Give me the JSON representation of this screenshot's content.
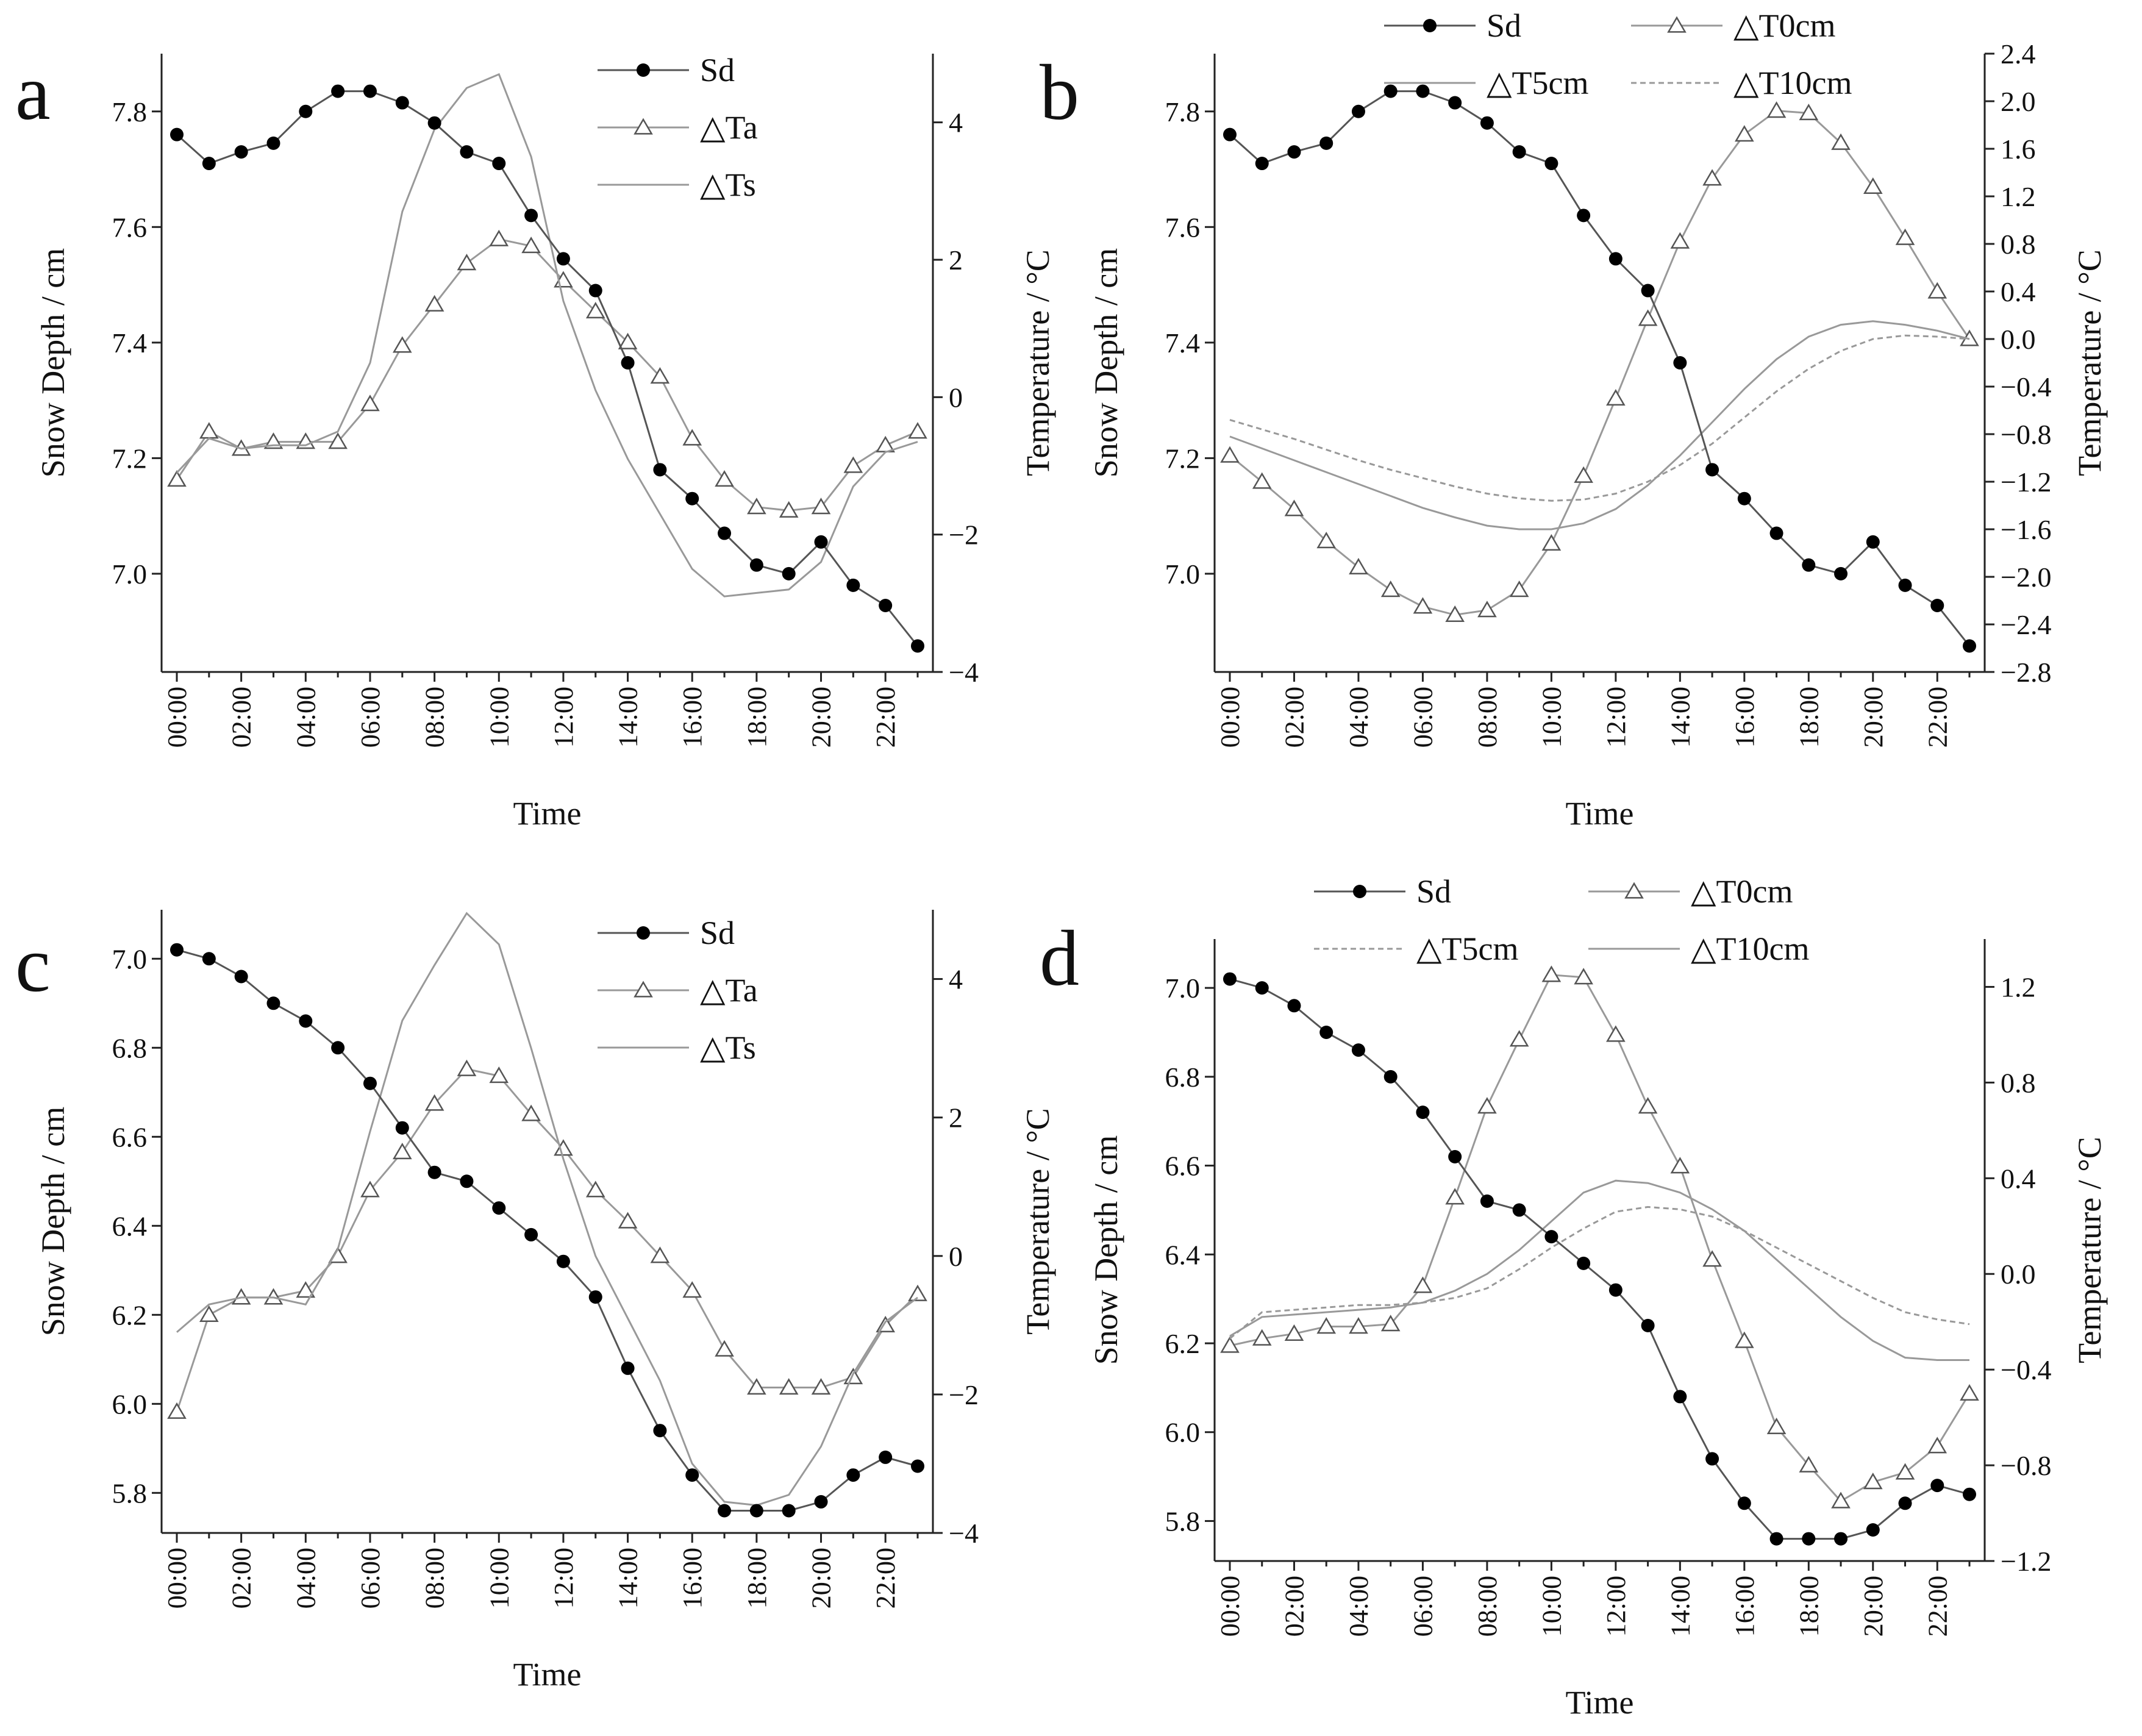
{
  "colors": {
    "axis": "#222222",
    "sd": "#000000",
    "temp": "#999999",
    "background": "#ffffff"
  },
  "chart_data": [
    {
      "panel": "a",
      "type": "line",
      "xlabel": "Time",
      "ylabel": "Snow Depth / cm",
      "y2label": "Temperature / °C",
      "ylim": [
        6.83,
        7.9
      ],
      "y2lim": [
        -4,
        5
      ],
      "yticks": [
        7.0,
        7.2,
        7.4,
        7.6,
        7.8
      ],
      "y2ticks": [
        -4,
        -2,
        0,
        2,
        4
      ],
      "x": [
        "00:00",
        "01:00",
        "02:00",
        "03:00",
        "04:00",
        "05:00",
        "06:00",
        "07:00",
        "08:00",
        "09:00",
        "10:00",
        "11:00",
        "12:00",
        "13:00",
        "14:00",
        "15:00",
        "16:00",
        "17:00",
        "18:00",
        "19:00",
        "20:00",
        "21:00",
        "22:00",
        "23:00"
      ],
      "xtick_labels": [
        "00:00",
        "02:00",
        "04:00",
        "06:00",
        "08:00",
        "10:00",
        "12:00",
        "14:00",
        "16:00",
        "18:00",
        "20:00",
        "22:00"
      ],
      "legend": "top-right",
      "legend_columns": 1,
      "series": [
        {
          "name": "Sd",
          "axis": "left",
          "marker": "filled-circle",
          "line": "solid",
          "values": [
            7.76,
            7.71,
            7.73,
            7.745,
            7.8,
            7.835,
            7.835,
            7.815,
            7.78,
            7.73,
            7.71,
            7.62,
            7.545,
            7.49,
            7.365,
            7.18,
            7.13,
            7.07,
            7.015,
            7.0,
            7.055,
            6.98,
            6.945,
            6.875
          ]
        },
        {
          "name": "△Ta",
          "axis": "right",
          "marker": "open-triangle",
          "line": "solid",
          "values": [
            -1.2,
            -0.5,
            -0.75,
            -0.65,
            -0.65,
            -0.65,
            -0.1,
            0.75,
            1.35,
            1.95,
            2.3,
            2.2,
            1.7,
            1.25,
            0.8,
            0.3,
            -0.6,
            -1.2,
            -1.6,
            -1.65,
            -1.6,
            -1.0,
            -0.7,
            -0.5
          ]
        },
        {
          "name": "△Ts",
          "axis": "right",
          "marker": "none",
          "line": "solid",
          "values": [
            -1.1,
            -0.6,
            -0.75,
            -0.7,
            -0.7,
            -0.5,
            0.5,
            2.7,
            3.9,
            4.5,
            4.7,
            3.5,
            1.4,
            0.1,
            -0.9,
            -1.7,
            -2.5,
            -2.9,
            -2.85,
            -2.8,
            -2.4,
            -1.3,
            -0.8,
            -0.65
          ]
        }
      ]
    },
    {
      "panel": "b",
      "type": "line",
      "xlabel": "Time",
      "ylabel": "Snow Depth / cm",
      "y2label": "Temperature / °C",
      "ylim": [
        6.83,
        7.9
      ],
      "y2lim": [
        -2.8,
        2.4
      ],
      "yticks": [
        7.0,
        7.2,
        7.4,
        7.6,
        7.8
      ],
      "y2ticks": [
        -2.8,
        -2.4,
        -2.0,
        -1.6,
        -1.2,
        -0.8,
        -0.4,
        0.0,
        0.4,
        0.8,
        1.2,
        1.6,
        2.0,
        2.4
      ],
      "x": [
        "00:00",
        "01:00",
        "02:00",
        "03:00",
        "04:00",
        "05:00",
        "06:00",
        "07:00",
        "08:00",
        "09:00",
        "10:00",
        "11:00",
        "12:00",
        "13:00",
        "14:00",
        "15:00",
        "16:00",
        "17:00",
        "18:00",
        "19:00",
        "20:00",
        "21:00",
        "22:00",
        "23:00"
      ],
      "xtick_labels": [
        "00:00",
        "02:00",
        "04:00",
        "06:00",
        "08:00",
        "10:00",
        "12:00",
        "14:00",
        "16:00",
        "18:00",
        "20:00",
        "22:00"
      ],
      "legend": "top-outside",
      "legend_columns": 2,
      "series": [
        {
          "name": "Sd",
          "axis": "left",
          "marker": "filled-circle",
          "line": "solid",
          "values": [
            7.76,
            7.71,
            7.73,
            7.745,
            7.8,
            7.835,
            7.835,
            7.815,
            7.78,
            7.73,
            7.71,
            7.62,
            7.545,
            7.49,
            7.365,
            7.18,
            7.13,
            7.07,
            7.015,
            7.0,
            7.055,
            6.98,
            6.945,
            6.875
          ]
        },
        {
          "name": "△T0cm",
          "axis": "right",
          "marker": "open-triangle",
          "line": "solid",
          "values": [
            -0.98,
            -1.2,
            -1.43,
            -1.7,
            -1.92,
            -2.11,
            -2.25,
            -2.32,
            -2.28,
            -2.11,
            -1.72,
            -1.15,
            -0.5,
            0.17,
            0.82,
            1.35,
            1.72,
            1.92,
            1.9,
            1.65,
            1.28,
            0.85,
            0.4,
            0.0
          ]
        },
        {
          "name": "△T5cm",
          "axis": "right",
          "marker": "none",
          "line": "solid",
          "values": [
            -0.82,
            -0.92,
            -1.02,
            -1.12,
            -1.22,
            -1.32,
            -1.42,
            -1.5,
            -1.57,
            -1.6,
            -1.6,
            -1.55,
            -1.43,
            -1.23,
            -0.98,
            -0.7,
            -0.42,
            -0.17,
            0.02,
            0.12,
            0.15,
            0.12,
            0.07,
            0.0
          ]
        },
        {
          "name": "△T10cm",
          "axis": "right",
          "marker": "none",
          "line": "dashed",
          "values": [
            -0.68,
            -0.76,
            -0.84,
            -0.93,
            -1.02,
            -1.1,
            -1.17,
            -1.24,
            -1.3,
            -1.34,
            -1.36,
            -1.35,
            -1.3,
            -1.2,
            -1.06,
            -0.88,
            -0.66,
            -0.44,
            -0.25,
            -0.1,
            0.0,
            0.03,
            0.02,
            0.0
          ]
        }
      ]
    },
    {
      "panel": "c",
      "type": "line",
      "xlabel": "Time",
      "ylabel": "Snow Depth / cm",
      "y2label": "Temperature / °C",
      "ylim": [
        5.71,
        7.11
      ],
      "y2lim": [
        -4,
        5
      ],
      "yticks": [
        5.8,
        6.0,
        6.2,
        6.4,
        6.6,
        6.8,
        7.0
      ],
      "y2ticks": [
        -4,
        -2,
        0,
        2,
        4
      ],
      "x": [
        "00:00",
        "01:00",
        "02:00",
        "03:00",
        "04:00",
        "05:00",
        "06:00",
        "07:00",
        "08:00",
        "09:00",
        "10:00",
        "11:00",
        "12:00",
        "13:00",
        "14:00",
        "15:00",
        "16:00",
        "17:00",
        "18:00",
        "19:00",
        "20:00",
        "21:00",
        "22:00",
        "23:00"
      ],
      "xtick_labels": [
        "00:00",
        "02:00",
        "04:00",
        "06:00",
        "08:00",
        "10:00",
        "12:00",
        "14:00",
        "16:00",
        "18:00",
        "20:00",
        "22:00"
      ],
      "legend": "top-right",
      "legend_columns": 1,
      "series": [
        {
          "name": "Sd",
          "axis": "left",
          "marker": "filled-circle",
          "line": "solid",
          "values": [
            7.02,
            7.0,
            6.96,
            6.9,
            6.86,
            6.8,
            6.72,
            6.62,
            6.52,
            6.5,
            6.44,
            6.38,
            6.32,
            6.24,
            6.08,
            5.94,
            5.84,
            5.76,
            5.76,
            5.76,
            5.78,
            5.84,
            5.88,
            5.86
          ]
        },
        {
          "name": "△Ta",
          "axis": "right",
          "marker": "open-triangle",
          "line": "solid",
          "values": [
            -2.25,
            -0.85,
            -0.6,
            -0.6,
            -0.5,
            0.0,
            0.95,
            1.5,
            2.2,
            2.7,
            2.6,
            2.05,
            1.55,
            0.95,
            0.5,
            0.0,
            -0.5,
            -1.35,
            -1.9,
            -1.9,
            -1.9,
            -1.75,
            -1.0,
            -0.55
          ]
        },
        {
          "name": "△Ts",
          "axis": "right",
          "marker": "none",
          "line": "solid",
          "values": [
            -1.1,
            -0.7,
            -0.6,
            -0.6,
            -0.7,
            0.1,
            1.8,
            3.4,
            4.2,
            4.95,
            4.5,
            3.0,
            1.4,
            0.0,
            -0.9,
            -1.8,
            -3.0,
            -3.55,
            -3.6,
            -3.45,
            -2.75,
            -1.7,
            -0.95,
            -0.6
          ]
        }
      ]
    },
    {
      "panel": "d",
      "type": "line",
      "xlabel": "Time",
      "ylabel": "Snow Depth / cm",
      "y2label": "Temperature / °C",
      "ylim": [
        5.71,
        7.11
      ],
      "y2lim": [
        -1.2,
        1.4
      ],
      "yticks": [
        5.8,
        6.0,
        6.2,
        6.4,
        6.6,
        6.8,
        7.0
      ],
      "y2ticks": [
        -1.2,
        -0.8,
        -0.4,
        0.0,
        0.4,
        0.8,
        1.2
      ],
      "x": [
        "00:00",
        "01:00",
        "02:00",
        "03:00",
        "04:00",
        "05:00",
        "06:00",
        "07:00",
        "08:00",
        "09:00",
        "10:00",
        "11:00",
        "12:00",
        "13:00",
        "14:00",
        "15:00",
        "16:00",
        "17:00",
        "18:00",
        "19:00",
        "20:00",
        "21:00",
        "22:00",
        "23:00"
      ],
      "xtick_labels": [
        "00:00",
        "02:00",
        "04:00",
        "06:00",
        "08:00",
        "10:00",
        "12:00",
        "14:00",
        "16:00",
        "18:00",
        "20:00",
        "22:00"
      ],
      "legend": "top-outside",
      "legend_columns": 2,
      "series": [
        {
          "name": "Sd",
          "axis": "left",
          "marker": "filled-circle",
          "line": "solid",
          "values": [
            7.02,
            7.0,
            6.96,
            6.9,
            6.86,
            6.8,
            6.72,
            6.62,
            6.52,
            6.5,
            6.44,
            6.38,
            6.32,
            6.24,
            6.08,
            5.94,
            5.84,
            5.76,
            5.76,
            5.76,
            5.78,
            5.84,
            5.88,
            5.86
          ]
        },
        {
          "name": "△T0cm",
          "axis": "right",
          "marker": "open-triangle",
          "line": "solid",
          "values": [
            -0.3,
            -0.27,
            -0.25,
            -0.22,
            -0.22,
            -0.21,
            -0.05,
            0.32,
            0.7,
            0.98,
            1.25,
            1.24,
            1.0,
            0.7,
            0.45,
            0.06,
            -0.28,
            -0.64,
            -0.8,
            -0.95,
            -0.87,
            -0.83,
            -0.72,
            -0.5
          ]
        },
        {
          "name": "△T5cm",
          "axis": "right",
          "marker": "none",
          "line": "dashed",
          "values": [
            -0.27,
            -0.16,
            -0.15,
            -0.14,
            -0.13,
            -0.13,
            -0.12,
            -0.1,
            -0.06,
            0.02,
            0.11,
            0.19,
            0.26,
            0.28,
            0.27,
            0.24,
            0.18,
            0.11,
            0.04,
            -0.03,
            -0.1,
            -0.16,
            -0.19,
            -0.21
          ]
        },
        {
          "name": "△T10cm",
          "axis": "right",
          "marker": "none",
          "line": "solid",
          "values": [
            -0.26,
            -0.18,
            -0.17,
            -0.16,
            -0.15,
            -0.14,
            -0.12,
            -0.07,
            0.0,
            0.1,
            0.22,
            0.34,
            0.39,
            0.38,
            0.34,
            0.27,
            0.18,
            0.06,
            -0.06,
            -0.18,
            -0.28,
            -0.35,
            -0.36,
            -0.36
          ]
        }
      ]
    }
  ]
}
